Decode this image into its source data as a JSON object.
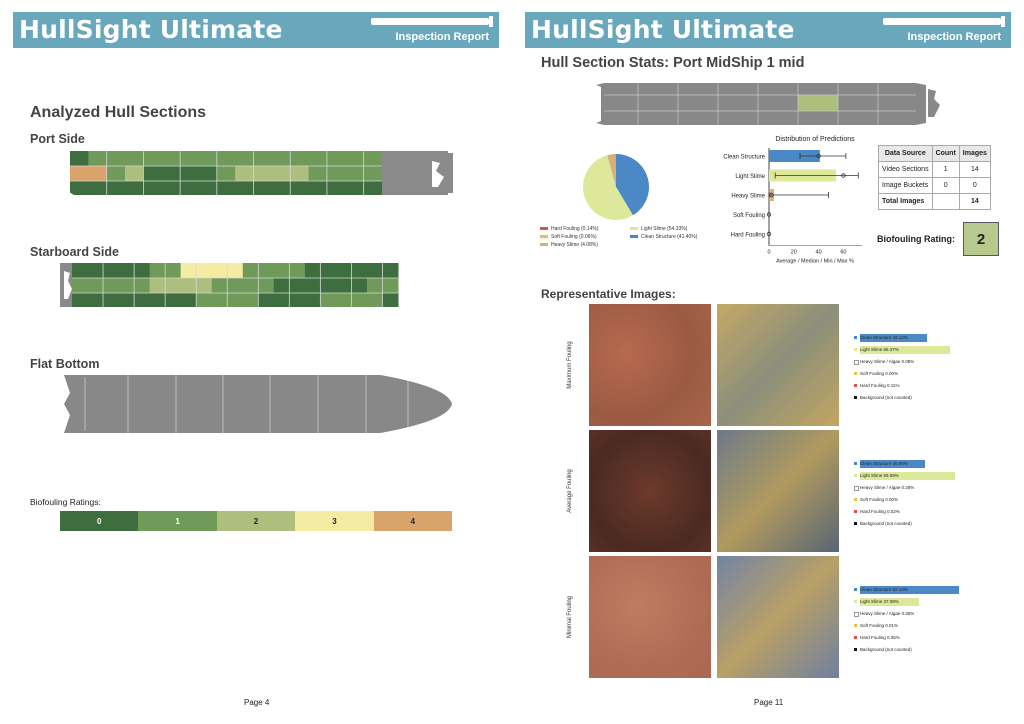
{
  "left_page": {
    "brand": "HullSight Ultimate",
    "report_label": "Inspection Report",
    "heading": "Analyzed Hull Sections",
    "port_label": "Port Side",
    "starboard_label": "Starboard Side",
    "bottom_label": "Flat Bottom",
    "ratings_label": "Biofouling Ratings:",
    "ratings_scale": [
      "0",
      "1",
      "2",
      "3",
      "4"
    ],
    "rating_colors": [
      "#3e6e3f",
      "#6f9a59",
      "#aebf7d",
      "#f4eca2",
      "#d9a46c"
    ],
    "port_grid": [
      [
        0,
        1,
        1,
        1,
        1,
        1,
        1,
        1,
        1,
        1,
        1,
        1,
        1,
        1,
        1,
        1,
        1
      ],
      [
        4,
        4,
        1,
        2,
        0,
        0,
        0,
        0,
        1,
        2,
        2,
        2,
        2,
        1,
        1,
        1,
        1
      ],
      [
        0,
        0,
        0,
        0,
        0,
        0,
        0,
        0,
        0,
        0,
        0,
        0,
        0,
        0,
        0,
        0,
        0
      ]
    ],
    "starboard_grid": [
      [
        0,
        0,
        0,
        0,
        0,
        1,
        1,
        3,
        3,
        3,
        3,
        1,
        1,
        1,
        1,
        0,
        0,
        0,
        0,
        0,
        0
      ],
      [
        1,
        1,
        1,
        1,
        1,
        2,
        2,
        2,
        2,
        1,
        1,
        1,
        1,
        0,
        0,
        0,
        0,
        0,
        0,
        1,
        1
      ],
      [
        0,
        0,
        0,
        0,
        0,
        0,
        0,
        0,
        1,
        1,
        1,
        1,
        0,
        0,
        0,
        0,
        1,
        1,
        1,
        1,
        0
      ]
    ],
    "page": "Page 4"
  },
  "right_page": {
    "brand": "HullSight Ultimate",
    "report_label": "Inspection Report",
    "heading": "Hull Section Stats: Port MidShip 1 mid",
    "dist_title": "Distribution of Predictions",
    "dist_xlabel": "Average / Median / Min / Max %",
    "pie_legend": [
      {
        "label": "Hard Fouling (0.14%)",
        "color": "#d9534f"
      },
      {
        "label": "Light Slime (54.33%)",
        "color": "#dde89a"
      },
      {
        "label": "Soft Fouling (0.06%)",
        "color": "#e6c34a"
      },
      {
        "label": "Clean Structure (41.40%)",
        "color": "#4a89c6"
      },
      {
        "label": "Heavy Slime (4.08%)",
        "color": "#d9b07a"
      }
    ],
    "table": {
      "headers": [
        "Data Source",
        "Count",
        "Images"
      ],
      "rows": [
        [
          "Video Sections",
          "1",
          "14"
        ],
        [
          "Image Buckets",
          "0",
          "0"
        ],
        [
          "Total Images",
          "",
          "14"
        ]
      ]
    },
    "rating_label": "Biofouling Rating:",
    "rating_value": "2",
    "rep_heading": "Representative Images:",
    "rows": [
      {
        "label": "Maximum Fouling",
        "legend": [
          "Clean Structure 42.12%",
          "Light Slime 56.37%",
          "Heavy Slime / Algae 0.08%",
          "Soft Fouling 0.00%",
          "Hard Fouling 0.11%",
          "Background (not counted)"
        ],
        "bars": [
          42.12,
          56.37
        ]
      },
      {
        "label": "Average Fouling",
        "legend": [
          "Clean Structure 40.65%",
          "Light Slime 59.08%",
          "Heavy Slime / Algae 0.28%",
          "Soft Fouling 0.00%",
          "Hard Fouling 0.02%",
          "Background (not counted)"
        ],
        "bars": [
          40.65,
          59.08
        ]
      },
      {
        "label": "Minimal Fouling",
        "legend": [
          "Clean Structure 62.13%",
          "Light Slime 37.08%",
          "Heavy Slime / Algae 0.35%",
          "Soft Fouling 0.01%",
          "Hard Fouling 0.35%",
          "Background (not counted)"
        ],
        "bars": [
          62.13,
          37.08
        ]
      }
    ],
    "legend_colors": [
      "#4a89c6",
      "#dde89a",
      "#ffffff",
      "#e6c34a",
      "#d9534f",
      "#111111"
    ],
    "page": "Page 11"
  },
  "chart_data": [
    {
      "type": "pie",
      "title": "",
      "categories": [
        "Hard Fouling",
        "Soft Fouling",
        "Heavy Slime",
        "Light Slime",
        "Clean Structure"
      ],
      "values": [
        0.14,
        0.06,
        4.08,
        54.33,
        41.4
      ],
      "colors": [
        "#d9534f",
        "#e6c34a",
        "#d9b07a",
        "#dde89a",
        "#4a89c6"
      ]
    },
    {
      "type": "bar",
      "title": "Distribution of Predictions",
      "xlabel": "Average / Median / Min / Max %",
      "categories": [
        "Clean Structure",
        "Light Slime",
        "Heavy Slime",
        "Soft Fouling",
        "Hard Fouling"
      ],
      "values": [
        41,
        54,
        4,
        0,
        0
      ],
      "median": [
        40,
        60,
        2,
        0,
        0
      ],
      "min": [
        25,
        5,
        0,
        0,
        0
      ],
      "max": [
        62,
        72,
        48,
        0,
        0
      ],
      "xlim": [
        0,
        75
      ],
      "xticks": [
        "0",
        "20",
        "40",
        "60"
      ],
      "colors": [
        "#4a89c6",
        "#dde89a",
        "#d9b07a",
        "#e6c34a",
        "#d9534f"
      ]
    }
  ]
}
